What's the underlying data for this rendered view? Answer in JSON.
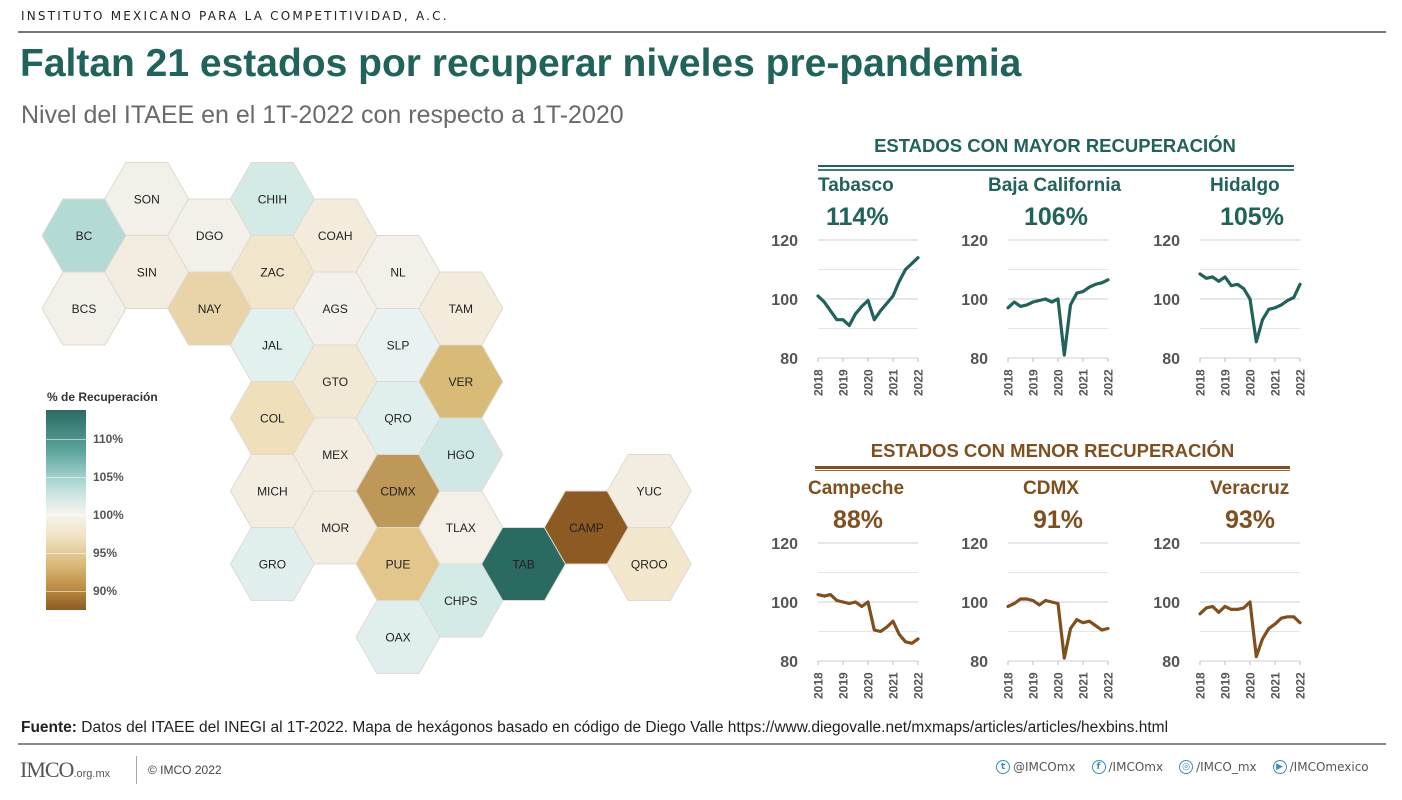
{
  "header": {
    "org": "INSTITUTO MEXICANO PARA LA COMPETITIVIDAD, A.C.",
    "title": "Faltan 21 estados por recuperar niveles pre-pandemia",
    "subtitle": "Nivel del ITAEE en el 1T-2022 con respecto a 1T-2020"
  },
  "legend": {
    "title": "% de Recuperación",
    "ticks": [
      "110%",
      "105%",
      "100%",
      "95%",
      "90%"
    ],
    "colors": {
      "high": "#2b6a61",
      "mid": "#f6f4f1",
      "low": "#8e5a24"
    }
  },
  "colors": {
    "green": "#21625a",
    "brown": "#7f4f1f",
    "grid": "#d0d0d0",
    "axis_text": "#555555"
  },
  "hexmap": {
    "states": [
      {
        "abbr": "BC",
        "col": 0,
        "row": 1,
        "fill": "#b3dad4"
      },
      {
        "abbr": "BCS",
        "col": 0,
        "row": 3,
        "fill": "#f3f0ea"
      },
      {
        "abbr": "SON",
        "col": 1,
        "row": 0,
        "fill": "#f3f0ea"
      },
      {
        "abbr": "SIN",
        "col": 1,
        "row": 2,
        "fill": "#f3ede1"
      },
      {
        "abbr": "DGO",
        "col": 2,
        "row": 1,
        "fill": "#f3f0ea"
      },
      {
        "abbr": "NAY",
        "col": 2,
        "row": 3,
        "fill": "#e8d4a8"
      },
      {
        "abbr": "CHIH",
        "col": 3,
        "row": 0,
        "fill": "#d4eae7"
      },
      {
        "abbr": "ZAC",
        "col": 3,
        "row": 2,
        "fill": "#f1e6cc"
      },
      {
        "abbr": "JAL",
        "col": 3,
        "row": 4,
        "fill": "#e2f0ee"
      },
      {
        "abbr": "COL",
        "col": 3,
        "row": 6,
        "fill": "#efdfba"
      },
      {
        "abbr": "MICH",
        "col": 3,
        "row": 8,
        "fill": "#f3ede1"
      },
      {
        "abbr": "GRO",
        "col": 3,
        "row": 10,
        "fill": "#e0efed"
      },
      {
        "abbr": "COAH",
        "col": 4,
        "row": 1,
        "fill": "#f3ecdd"
      },
      {
        "abbr": "AGS",
        "col": 4,
        "row": 3,
        "fill": "#f4f1ec"
      },
      {
        "abbr": "GTO",
        "col": 4,
        "row": 5,
        "fill": "#f2e9d4"
      },
      {
        "abbr": "MEX",
        "col": 4,
        "row": 7,
        "fill": "#f3ede1"
      },
      {
        "abbr": "MOR",
        "col": 4,
        "row": 9,
        "fill": "#f3ede1"
      },
      {
        "abbr": "NL",
        "col": 5,
        "row": 2,
        "fill": "#f3f0ea"
      },
      {
        "abbr": "SLP",
        "col": 5,
        "row": 4,
        "fill": "#eaf2f1"
      },
      {
        "abbr": "QRO",
        "col": 5,
        "row": 6,
        "fill": "#e0efed"
      },
      {
        "abbr": "CDMX",
        "col": 5,
        "row": 8,
        "fill": "#be9858"
      },
      {
        "abbr": "PUE",
        "col": 5,
        "row": 10,
        "fill": "#e2c68c"
      },
      {
        "abbr": "OAX",
        "col": 5,
        "row": 12,
        "fill": "#e0efed"
      },
      {
        "abbr": "TAM",
        "col": 6,
        "row": 3,
        "fill": "#f3ecdd"
      },
      {
        "abbr": "VER",
        "col": 6,
        "row": 5,
        "fill": "#d9bb78"
      },
      {
        "abbr": "HGO",
        "col": 6,
        "row": 7,
        "fill": "#d0e8e5"
      },
      {
        "abbr": "TLAX",
        "col": 6,
        "row": 9,
        "fill": "#f4f0e8"
      },
      {
        "abbr": "CHPS",
        "col": 6,
        "row": 11,
        "fill": "#d4eae7"
      },
      {
        "abbr": "TAB",
        "col": 7,
        "row": 10,
        "fill": "#2b6a61"
      },
      {
        "abbr": "CAMP",
        "col": 8,
        "row": 9,
        "fill": "#8e5a24"
      },
      {
        "abbr": "YUC",
        "col": 9,
        "row": 8,
        "fill": "#f3ede1"
      },
      {
        "abbr": "QROO",
        "col": 9,
        "row": 10,
        "fill": "#f2e6cc"
      }
    ]
  },
  "sections": {
    "top": {
      "heading": "ESTADOS CON MAYOR RECUPERACIÓN"
    },
    "bottom": {
      "heading": "ESTADOS CON MENOR RECUPERACIÓN"
    }
  },
  "footer": {
    "source_label": "Fuente:",
    "source_text": " Datos del ITAEE del INEGI al 1T-2022. Mapa de hexágonos basado en código de Diego Valle https://www.diegovalle.net/mxmaps/articles/articles/hexbins.html",
    "logo": "IMCO",
    "logo_domain": ".org.mx",
    "copyright": "© IMCO 2022",
    "socials": [
      {
        "icon": "twitter-icon",
        "glyph": "t",
        "handle": "@IMCOmx"
      },
      {
        "icon": "facebook-icon",
        "glyph": "f",
        "handle": "/IMCOmx"
      },
      {
        "icon": "instagram-icon",
        "glyph": "◎",
        "handle": "/IMCO_mx"
      },
      {
        "icon": "youtube-icon",
        "glyph": "▶",
        "handle": "/IMCOmexico"
      }
    ]
  },
  "chart_data": [
    {
      "type": "line",
      "group": "top",
      "title": "Tabasco",
      "value_label": "114%",
      "x": [
        "2018Q1",
        "2018Q2",
        "2018Q3",
        "2018Q4",
        "2019Q1",
        "2019Q2",
        "2019Q3",
        "2019Q4",
        "2020Q1",
        "2020Q2",
        "2020Q3",
        "2020Q4",
        "2021Q1",
        "2021Q2",
        "2021Q3",
        "2021Q4",
        "2022Q1"
      ],
      "values": [
        101,
        99,
        96,
        93,
        93,
        91,
        95,
        97.5,
        99.5,
        93,
        96,
        98.5,
        101,
        106,
        110,
        112,
        114
      ],
      "xticks": [
        "2018",
        "2019",
        "2020",
        "2021",
        "2022"
      ],
      "yticks": [
        "80",
        "100",
        "120"
      ],
      "ylim": [
        80,
        120
      ],
      "grid": true
    },
    {
      "type": "line",
      "group": "top",
      "title": "Baja California",
      "value_label": "106%",
      "x": [
        "2018Q1",
        "2018Q2",
        "2018Q3",
        "2018Q4",
        "2019Q1",
        "2019Q2",
        "2019Q3",
        "2019Q4",
        "2020Q1",
        "2020Q2",
        "2020Q3",
        "2020Q4",
        "2021Q1",
        "2021Q2",
        "2021Q3",
        "2021Q4",
        "2022Q1"
      ],
      "values": [
        97,
        99,
        97.5,
        98,
        99,
        99.5,
        100,
        99,
        100,
        81,
        98,
        102,
        102.5,
        104,
        105,
        105.5,
        106.5
      ],
      "xticks": [
        "2018",
        "2019",
        "2020",
        "2021",
        "2022"
      ],
      "yticks": [
        "80",
        "100",
        "120"
      ],
      "ylim": [
        80,
        120
      ],
      "grid": true
    },
    {
      "type": "line",
      "group": "top",
      "title": "Hidalgo",
      "value_label": "105%",
      "x": [
        "2018Q1",
        "2018Q2",
        "2018Q3",
        "2018Q4",
        "2019Q1",
        "2019Q2",
        "2019Q3",
        "2019Q4",
        "2020Q1",
        "2020Q2",
        "2020Q3",
        "2020Q4",
        "2021Q1",
        "2021Q2",
        "2021Q3",
        "2021Q4",
        "2022Q1"
      ],
      "values": [
        108.5,
        107,
        107.5,
        106,
        107.5,
        104.5,
        105,
        103.5,
        100,
        85.5,
        93,
        96.5,
        97,
        98,
        99.5,
        100.5,
        105
      ],
      "xticks": [
        "2018",
        "2019",
        "2020",
        "2021",
        "2022"
      ],
      "yticks": [
        "80",
        "100",
        "120"
      ],
      "ylim": [
        80,
        120
      ],
      "grid": true
    },
    {
      "type": "line",
      "group": "bottom",
      "title": "Campeche",
      "value_label": "88%",
      "x": [
        "2018Q1",
        "2018Q2",
        "2018Q3",
        "2018Q4",
        "2019Q1",
        "2019Q2",
        "2019Q3",
        "2019Q4",
        "2020Q1",
        "2020Q2",
        "2020Q3",
        "2020Q4",
        "2021Q1",
        "2021Q2",
        "2021Q3",
        "2021Q4",
        "2022Q1"
      ],
      "values": [
        102.5,
        102,
        102.5,
        100.5,
        100,
        99.5,
        100,
        98.5,
        100,
        90.5,
        90,
        91.5,
        93.5,
        89,
        86.5,
        86,
        87.5
      ],
      "xticks": [
        "2018",
        "2019",
        "2020",
        "2021",
        "2022"
      ],
      "yticks": [
        "80",
        "100",
        "120"
      ],
      "ylim": [
        80,
        120
      ],
      "grid": true
    },
    {
      "type": "line",
      "group": "bottom",
      "title": "CDMX",
      "value_label": "91%",
      "x": [
        "2018Q1",
        "2018Q2",
        "2018Q3",
        "2018Q4",
        "2019Q1",
        "2019Q2",
        "2019Q3",
        "2019Q4",
        "2020Q1",
        "2020Q2",
        "2020Q3",
        "2020Q4",
        "2021Q1",
        "2021Q2",
        "2021Q3",
        "2021Q4",
        "2022Q1"
      ],
      "values": [
        98.5,
        99.5,
        101,
        101,
        100.5,
        99,
        100.5,
        100,
        99.5,
        81,
        91,
        94,
        93,
        93.5,
        92,
        90.5,
        91
      ],
      "xticks": [
        "2018",
        "2019",
        "2020",
        "2021",
        "2022"
      ],
      "yticks": [
        "80",
        "100",
        "120"
      ],
      "ylim": [
        80,
        120
      ],
      "grid": true
    },
    {
      "type": "line",
      "group": "bottom",
      "title": "Veracruz",
      "value_label": "93%",
      "x": [
        "2018Q1",
        "2018Q2",
        "2018Q3",
        "2018Q4",
        "2019Q1",
        "2019Q2",
        "2019Q3",
        "2019Q4",
        "2020Q1",
        "2020Q2",
        "2020Q3",
        "2020Q4",
        "2021Q1",
        "2021Q2",
        "2021Q3",
        "2021Q4",
        "2022Q1"
      ],
      "values": [
        96,
        98,
        98.5,
        96.5,
        98.5,
        97.5,
        97.5,
        98,
        100,
        81.5,
        87.5,
        91,
        92.5,
        94.5,
        95,
        95,
        93
      ],
      "xticks": [
        "2018",
        "2019",
        "2020",
        "2021",
        "2022"
      ],
      "yticks": [
        "80",
        "100",
        "120"
      ],
      "ylim": [
        80,
        120
      ],
      "grid": true
    }
  ]
}
